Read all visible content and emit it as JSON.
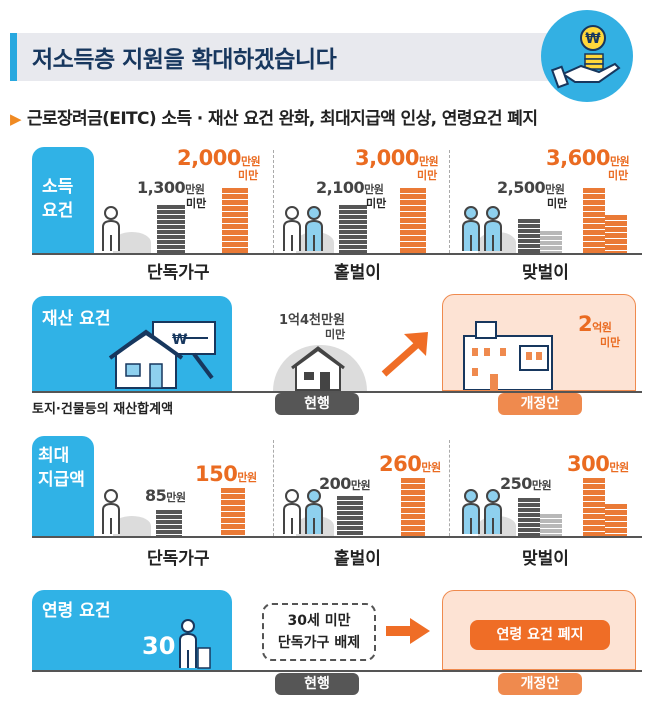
{
  "header": {
    "title": "저소득층 지원을 확대하겠습니다",
    "icon": "hand-holding-coins-icon",
    "accent": "#28a8df",
    "orange": "#ea6b21"
  },
  "subtitle": "근로장려금(EITC) 소득 · 재산 요건 완화, 최대지급액 인상, 연령요건 폐지",
  "income": {
    "tab": [
      "소득",
      "요건"
    ],
    "groups": [
      {
        "label": "단독가구",
        "current": "1,300",
        "proposed": "2,000"
      },
      {
        "label": "홑벌이",
        "current": "2,100",
        "proposed": "3,000"
      },
      {
        "label": "맞벌이",
        "current": "2,500",
        "proposed": "3,600"
      }
    ],
    "unit": "만원",
    "under": "미만"
  },
  "asset": {
    "tab": "재산 요건",
    "caption": "토지·건물등의 재산합계액",
    "current_pre": "1억",
    "current_val": "4천만원",
    "current_under": "미만",
    "proposed": "2",
    "proposed_unit": "억원",
    "proposed_under": "미만",
    "current_label": "현행",
    "proposed_label": "개정안"
  },
  "maxpay": {
    "tab": [
      "최대",
      "지급액"
    ],
    "groups": [
      {
        "label": "단독가구",
        "current": "85",
        "proposed": "150"
      },
      {
        "label": "홑벌이",
        "current": "200",
        "proposed": "260"
      },
      {
        "label": "맞벌이",
        "current": "250",
        "proposed": "300"
      }
    ],
    "unit": "만원"
  },
  "age": {
    "tab": "연령 요건",
    "age_value": "30",
    "current_lines": [
      "30세 미만",
      "단독가구 배제"
    ],
    "proposed": "연령 요건 폐지",
    "current_label": "현행",
    "proposed_label": "개정안"
  }
}
